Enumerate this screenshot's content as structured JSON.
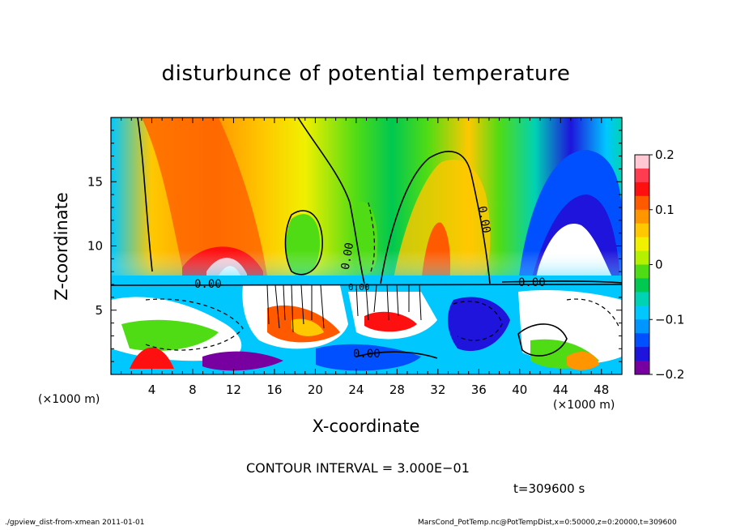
{
  "chart_data": {
    "type": "heatmap",
    "title": "disturbunce of potential temperature",
    "xlabel": "X-coordinate",
    "ylabel": "Z-coordinate",
    "x_unit_left": "(×1000 m)",
    "x_unit_right": "(×1000 m)",
    "xlim": [
      0,
      50
    ],
    "ylim": [
      0,
      20
    ],
    "x_ticks": [
      4,
      8,
      12,
      16,
      20,
      24,
      28,
      32,
      36,
      40,
      44,
      48
    ],
    "y_ticks": [
      5,
      10,
      15
    ],
    "colorbar": {
      "range": [
        -0.2,
        0.2
      ],
      "tick_values": [
        0.2,
        0.1,
        0,
        -0.1,
        -0.2
      ],
      "tick_labels": [
        "0.2",
        "0.1",
        "0",
        "−0.1",
        "−0.2"
      ],
      "colors": [
        "#ffc8d2",
        "#ff3c50",
        "#ff1010",
        "#ff5a00",
        "#ff9600",
        "#ffc800",
        "#f0f000",
        "#b4f000",
        "#50dc14",
        "#00c850",
        "#00d2b4",
        "#00c8ff",
        "#0096ff",
        "#0050ff",
        "#1e14dc",
        "#7800a0"
      ]
    },
    "contour_labels": [
      "0.00",
      "0.00",
      "0.00",
      "0.00",
      "0.00",
      "0.00"
    ],
    "contour_interval": "CONTOUR INTERVAL = 3.000E−01",
    "time": "t=309600 s"
  },
  "footer": {
    "left": "./gpview_dist-from-xmean  2011-01-01",
    "right": "MarsCond_PotTemp.nc@PotTempDist,x=0:50000,z=0:20000,t=309600"
  }
}
